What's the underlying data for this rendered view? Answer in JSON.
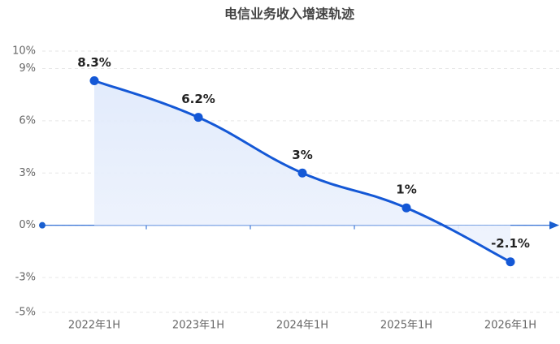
{
  "chart_data": {
    "type": "line",
    "title": "电信业务收入增速轨迹",
    "categories": [
      "2022年1H",
      "2023年1H",
      "2024年1H",
      "2025年1H",
      "2026年1H"
    ],
    "values": [
      8.3,
      6.2,
      3,
      1,
      -2.1
    ],
    "value_labels": [
      "8.3%",
      "6.2%",
      "3%",
      "1%",
      "-2.1%"
    ],
    "color": "#1458d6",
    "ylim": [
      -5,
      10
    ],
    "yticks": [
      {
        "value": -5,
        "label": "-5%"
      },
      {
        "value": -3,
        "label": "-3%"
      },
      {
        "value": 0,
        "label": "0%"
      },
      {
        "value": 3,
        "label": "3%"
      },
      {
        "value": 6,
        "label": "6%"
      },
      {
        "value": 9,
        "label": "9%"
      },
      {
        "value": 10,
        "label": "10%"
      }
    ],
    "grid": true
  }
}
